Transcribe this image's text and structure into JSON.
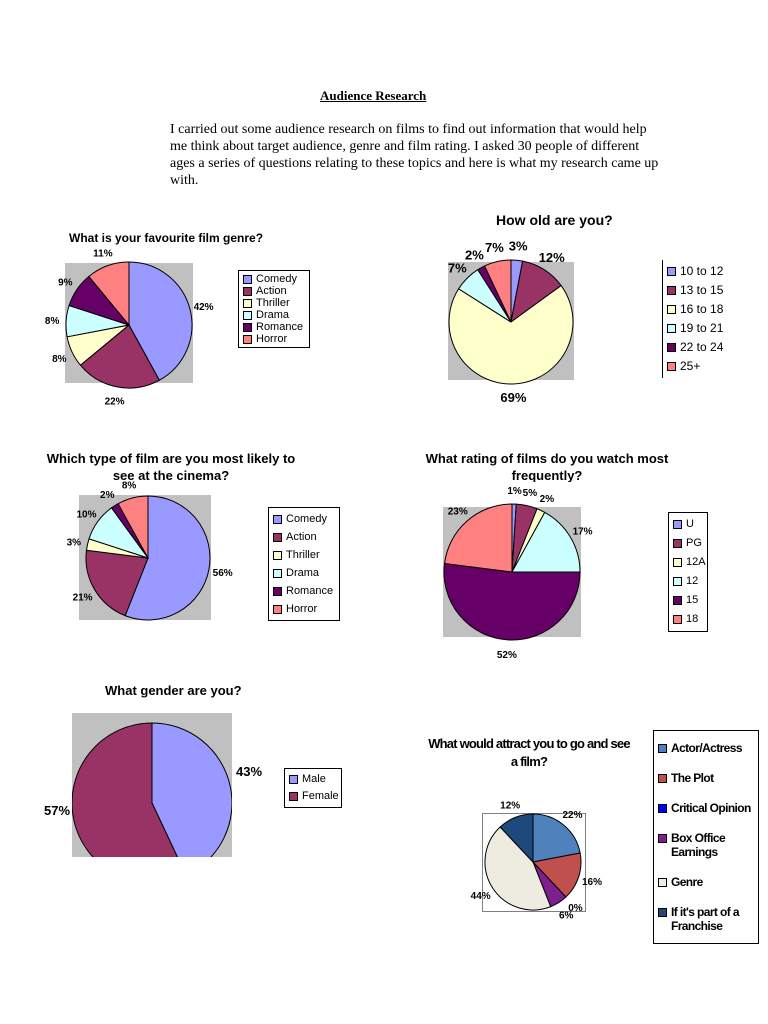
{
  "document": {
    "title": "Audience Research",
    "intro": "I carried out some audience research on films to find out information that would help me think about target audience, genre and film rating. I asked 30 people of different ages a series of questions relating to these topics and here is what my research came up with."
  },
  "chart_data": [
    {
      "type": "pie",
      "title": "What is your favourite film genre?",
      "labels": [
        "Comedy",
        "Action",
        "Thriller",
        "Drama",
        "Romance",
        "Horror"
      ],
      "values": [
        42,
        22,
        8,
        8,
        9,
        11
      ],
      "colors": [
        "#9999ff",
        "#993366",
        "#ffffcc",
        "#ccffff",
        "#660066",
        "#ff8080"
      ]
    },
    {
      "type": "pie",
      "title": "How old are you?",
      "labels": [
        "10 to 12",
        "13 to 15",
        "16 to 18",
        "19 to 21",
        "22 to 24",
        "25+"
      ],
      "values": [
        3,
        12,
        69,
        7,
        2,
        7
      ],
      "colors": [
        "#9999ff",
        "#993366",
        "#ffffcc",
        "#ccffff",
        "#660066",
        "#ff8080"
      ]
    },
    {
      "type": "pie",
      "title": "Which type of film are you most likely to see at the cinema?",
      "labels": [
        "Comedy",
        "Action",
        "Thriller",
        "Drama",
        "Romance",
        "Horror"
      ],
      "values": [
        56,
        21,
        3,
        10,
        2,
        8
      ],
      "colors": [
        "#9999ff",
        "#993366",
        "#ffffcc",
        "#ccffff",
        "#660066",
        "#ff8080"
      ]
    },
    {
      "type": "pie",
      "title": "What rating of films do you watch most frequently?",
      "labels": [
        "U",
        "PG",
        "12A",
        "12",
        "15",
        "18"
      ],
      "values": [
        1,
        5,
        2,
        17,
        52,
        23
      ],
      "colors": [
        "#9999ff",
        "#993366",
        "#ffffcc",
        "#ccffff",
        "#660066",
        "#ff8080"
      ]
    },
    {
      "type": "pie",
      "title": "What gender are you?",
      "labels": [
        "Male",
        "Female"
      ],
      "values": [
        43,
        57
      ],
      "colors": [
        "#9999ff",
        "#993366"
      ]
    },
    {
      "type": "pie",
      "title": "What would attract you to go and see a film?",
      "labels": [
        "Actor/Actress",
        "The Plot",
        "Critical Opinion",
        "Box Office Earnings",
        "Genre",
        "If it's part of a Franchise"
      ],
      "values": [
        22,
        16,
        0,
        6,
        44,
        12
      ],
      "colors": [
        "#4f81bd",
        "#c0504d",
        "#0000ff",
        "#7f1f8f",
        "#eeece1",
        "#1f497d"
      ]
    }
  ]
}
